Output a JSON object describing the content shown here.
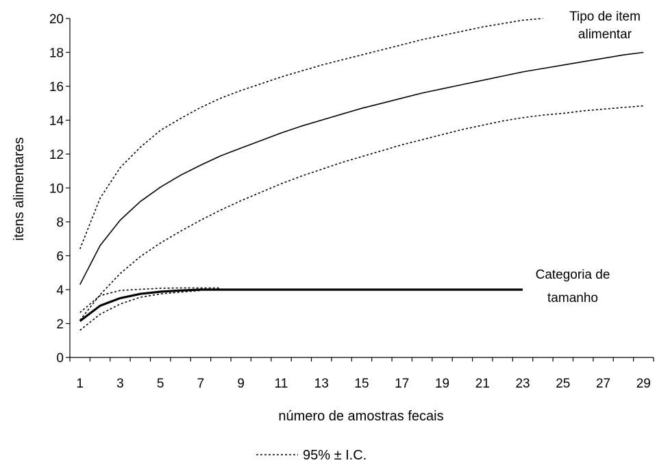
{
  "chart_data": {
    "type": "line",
    "xlabel": "número de amostras fecais",
    "ylabel": "itens alimentares",
    "ylim": [
      0,
      20
    ],
    "yticks": [
      0,
      2,
      4,
      6,
      8,
      10,
      12,
      14,
      16,
      18,
      20
    ],
    "xlim": [
      1,
      29
    ],
    "xtick_labels": [
      "1",
      "3",
      "5",
      "7",
      "9",
      "11",
      "13",
      "15",
      "17",
      "19",
      "21",
      "23",
      "25",
      "27",
      "29"
    ],
    "grid": false,
    "legend": {
      "label": "95% ± I.C.",
      "position": "bottom-center"
    },
    "annotations": [
      {
        "text_lines": [
          "Tipo de item",
          "alimentar"
        ]
      },
      {
        "text_lines": [
          "Categoria de",
          "tamanho"
        ]
      }
    ],
    "series": [
      {
        "style": "solid",
        "x": [
          1,
          2,
          3,
          4,
          5,
          6,
          7,
          8,
          9,
          10,
          11,
          12,
          13,
          14,
          15,
          16,
          17,
          18,
          19,
          20,
          21,
          22,
          23,
          24,
          25,
          26,
          27,
          28,
          29
        ],
        "values": [
          4.3,
          6.6,
          8.1,
          9.2,
          10.05,
          10.75,
          11.35,
          11.9,
          12.35,
          12.8,
          13.25,
          13.65,
          14.0,
          14.35,
          14.7,
          15.0,
          15.3,
          15.6,
          15.85,
          16.1,
          16.35,
          16.6,
          16.85,
          17.05,
          17.25,
          17.45,
          17.65,
          17.85,
          18.0
        ]
      },
      {
        "style": "dotted",
        "x": [
          1,
          2,
          3,
          4,
          5,
          6,
          7,
          8,
          9,
          10,
          11,
          12,
          13,
          14,
          15,
          16,
          17,
          18,
          19,
          20,
          21,
          22,
          23,
          24
        ],
        "values": [
          6.4,
          9.4,
          11.2,
          12.4,
          13.4,
          14.1,
          14.75,
          15.3,
          15.75,
          16.15,
          16.55,
          16.9,
          17.25,
          17.55,
          17.85,
          18.15,
          18.45,
          18.75,
          19.0,
          19.25,
          19.5,
          19.7,
          19.9,
          20.0
        ]
      },
      {
        "style": "dotted",
        "x": [
          1,
          2,
          3,
          4,
          5,
          6,
          7,
          8,
          9,
          10,
          11,
          12,
          13,
          14,
          15,
          16,
          17,
          18,
          19,
          20,
          21,
          22,
          23,
          24,
          25,
          26,
          27,
          28,
          29
        ],
        "values": [
          2.2,
          3.7,
          4.95,
          5.95,
          6.75,
          7.45,
          8.1,
          8.7,
          9.25,
          9.75,
          10.25,
          10.7,
          11.1,
          11.5,
          11.85,
          12.2,
          12.55,
          12.85,
          13.15,
          13.45,
          13.7,
          13.95,
          14.15,
          14.3,
          14.4,
          14.55,
          14.65,
          14.75,
          14.85
        ]
      },
      {
        "style": "thick",
        "x": [
          1,
          2,
          3,
          4,
          5,
          6,
          7,
          8,
          9,
          10,
          11,
          12,
          13,
          14,
          15,
          16,
          17,
          18,
          19,
          20,
          21,
          22,
          23
        ],
        "values": [
          2.15,
          3.05,
          3.5,
          3.75,
          3.88,
          3.95,
          4.0,
          4.0,
          4.0,
          4.0,
          4.0,
          4.0,
          4.0,
          4.0,
          4.0,
          4.0,
          4.0,
          4.0,
          4.0,
          4.0,
          4.0,
          4.0,
          4.0
        ]
      },
      {
        "style": "dotted",
        "x": [
          1,
          2,
          3,
          4,
          5,
          6,
          7,
          8
        ],
        "values": [
          2.65,
          3.65,
          3.95,
          4.02,
          4.08,
          4.1,
          4.1,
          4.1
        ]
      },
      {
        "style": "dotted",
        "x": [
          1,
          2,
          3,
          4,
          5,
          6,
          7
        ],
        "values": [
          1.6,
          2.55,
          3.15,
          3.55,
          3.75,
          3.85,
          3.95
        ]
      }
    ]
  }
}
